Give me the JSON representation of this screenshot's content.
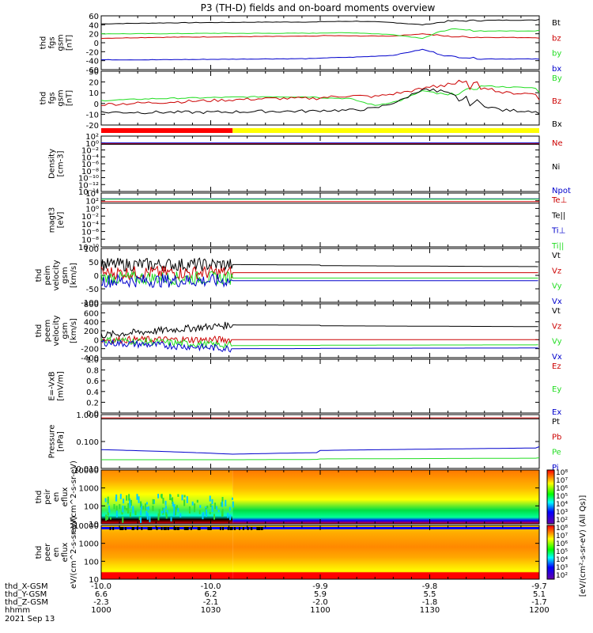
{
  "title": "P3 (TH-D) fields and on-board moments overview",
  "colors": {
    "black": "#000000",
    "red": "#cc0000",
    "green": "#22dd22",
    "blue": "#0000cc",
    "yellow": "#ffff00",
    "brightred": "#ff0000"
  },
  "chart_data": [
    {
      "type": "line",
      "ylabel": "thd fgs gsm [nT]",
      "ylim": [
        -60,
        60
      ],
      "yticks": [
        60,
        40,
        20,
        0,
        -20,
        -40,
        -60
      ],
      "series": [
        {
          "name": "Bt",
          "color": "black",
          "x": [
            1000,
            1015,
            1030,
            1045,
            1100,
            1110,
            1120,
            1128,
            1135,
            1145,
            1200
          ],
          "y": [
            42,
            44,
            45,
            46,
            47,
            48,
            45,
            40,
            48,
            50,
            52
          ]
        },
        {
          "name": "bz",
          "color": "red",
          "x": [
            1000,
            1015,
            1030,
            1045,
            1100,
            1110,
            1120,
            1128,
            1135,
            1145,
            1200
          ],
          "y": [
            10,
            12,
            13,
            14,
            16,
            15,
            15,
            20,
            14,
            12,
            10
          ]
        },
        {
          "name": "by",
          "color": "green",
          "x": [
            1000,
            1015,
            1030,
            1045,
            1100,
            1110,
            1120,
            1128,
            1135,
            1145,
            1200
          ],
          "y": [
            20,
            20,
            21,
            21,
            22,
            22,
            18,
            10,
            30,
            26,
            28
          ]
        },
        {
          "name": "bx",
          "color": "blue",
          "x": [
            1000,
            1015,
            1030,
            1045,
            1100,
            1110,
            1120,
            1128,
            1135,
            1145,
            1200
          ],
          "y": [
            -38,
            -38,
            -37,
            -36,
            -34,
            -32,
            -28,
            -15,
            -30,
            -36,
            -37
          ]
        }
      ]
    },
    {
      "type": "line",
      "ylabel": "thd fgs gsm [nT]",
      "ylim": [
        -25,
        30
      ],
      "yticks": [
        30,
        20,
        10,
        0,
        -10,
        -20
      ],
      "series": [
        {
          "name": "By",
          "color": "green",
          "x": [
            1000,
            1015,
            1030,
            1045,
            1100,
            1108,
            1115,
            1122,
            1128,
            1135,
            1145,
            1150,
            1200
          ],
          "y": [
            0,
            2,
            3,
            4,
            3,
            2,
            -5,
            0,
            10,
            5,
            15,
            14,
            8
          ]
        },
        {
          "name": "Bz",
          "color": "red",
          "x": [
            1000,
            1015,
            1030,
            1045,
            1100,
            1108,
            1115,
            1122,
            1128,
            1135,
            1145,
            1150,
            1200
          ],
          "y": [
            -4,
            -2,
            0,
            2,
            3,
            5,
            4,
            8,
            12,
            18,
            14,
            8,
            2
          ]
        },
        {
          "name": "Bx",
          "color": "black",
          "x": [
            1000,
            1015,
            1030,
            1045,
            1100,
            1108,
            1115,
            1122,
            1128,
            1135,
            1145,
            1150,
            1200
          ],
          "y": [
            -12,
            -12,
            -12,
            -11,
            -10,
            -10,
            -8,
            0,
            12,
            5,
            -5,
            -10,
            -14
          ]
        }
      ]
    },
    {
      "type": "line",
      "ylabel": "Density [cm-3]",
      "scale": "log",
      "ylim": [
        1e-15,
        100
      ],
      "yticks": [
        "10²",
        "10⁰",
        "10⁻²",
        "10⁻⁴",
        "10⁻⁶",
        "10⁻⁸",
        "10⁻¹⁰",
        "10⁻¹²",
        "10⁻¹⁴"
      ],
      "series": [
        {
          "name": "Ne",
          "color": "red",
          "x": [
            1000,
            1200
          ],
          "y": [
            0.5,
            0.5
          ]
        },
        {
          "name": "Ni",
          "color": "black",
          "x": [
            1000,
            1200
          ],
          "y": [
            0.3,
            0.3
          ]
        },
        {
          "name": "Npot",
          "color": "blue",
          "x": [
            1000,
            1200
          ],
          "y": [
            0.8,
            0.8
          ]
        }
      ]
    },
    {
      "type": "line",
      "ylabel": "magt3 [eV]",
      "scale": "log",
      "ylim": [
        1e-11,
        100000
      ],
      "yticks": [
        "10⁴",
        "10²",
        "10⁰",
        "10⁻²",
        "10⁻⁴",
        "10⁻⁶",
        "10⁻⁸",
        "10⁻¹⁰"
      ],
      "series": [
        {
          "name": "Te⊥",
          "color": "red",
          "x": [
            1000,
            1200
          ],
          "y": [
            300,
            300
          ]
        },
        {
          "name": "Te||",
          "color": "black",
          "x": [
            1000,
            1200
          ],
          "y": [
            100,
            100
          ]
        },
        {
          "name": "Ti⊥",
          "color": "blue",
          "x": [
            1000,
            1200
          ],
          "y": [
            2000,
            2000
          ]
        },
        {
          "name": "Ti||",
          "color": "green",
          "x": [
            1000,
            1200
          ],
          "y": [
            1500,
            1500
          ]
        }
      ]
    },
    {
      "type": "line",
      "ylabel": "thd peim velocity gsm [km/s]",
      "ylim": [
        -100,
        100
      ],
      "yticks": [
        100,
        50,
        0,
        -50,
        -100
      ],
      "series": [
        {
          "name": "Vt",
          "color": "black",
          "x": [
            1000,
            1036,
            1200
          ],
          "y": [
            40,
            40,
            30
          ]
        },
        {
          "name": "Vz",
          "color": "red",
          "x": [
            1000,
            1036,
            1200
          ],
          "y": [
            10,
            10,
            10
          ]
        },
        {
          "name": "Vy",
          "color": "green",
          "x": [
            1000,
            1036,
            1200
          ],
          "y": [
            -10,
            -10,
            -10
          ]
        },
        {
          "name": "Vx",
          "color": "blue",
          "x": [
            1000,
            1036,
            1200
          ],
          "y": [
            -20,
            -20,
            -20
          ]
        }
      ]
    },
    {
      "type": "line",
      "ylabel": "thd peem velocity gsm [km/s]",
      "ylim": [
        -400,
        800
      ],
      "yticks": [
        800,
        600,
        400,
        200,
        0,
        -200,
        -400
      ],
      "series": [
        {
          "name": "Vt",
          "color": "black",
          "x": [
            1000,
            1036,
            1200
          ],
          "y": [
            100,
            330,
            280
          ]
        },
        {
          "name": "Vz",
          "color": "red",
          "x": [
            1000,
            1036,
            1200
          ],
          "y": [
            0,
            0,
            0
          ]
        },
        {
          "name": "Vy",
          "color": "green",
          "x": [
            1000,
            1036,
            1200
          ],
          "y": [
            0,
            -130,
            -110
          ]
        },
        {
          "name": "Vx",
          "color": "blue",
          "x": [
            1000,
            1036,
            1200
          ],
          "y": [
            -60,
            -200,
            -180
          ]
        }
      ]
    },
    {
      "type": "line",
      "ylabel": "E=-VxB [mV/m]",
      "ylim": [
        0,
        1
      ],
      "yticks": [
        "1.0",
        "0.8",
        "0.6",
        "0.4",
        "0.2",
        "0.0"
      ],
      "series": [
        {
          "name": "Ez",
          "color": "red",
          "x": [],
          "y": []
        },
        {
          "name": "Ey",
          "color": "green",
          "x": [],
          "y": []
        },
        {
          "name": "Ex",
          "color": "blue",
          "x": [],
          "y": []
        }
      ]
    },
    {
      "type": "line",
      "ylabel": "Pressure [nPa]",
      "scale": "log",
      "ylim": [
        0.003,
        1.3
      ],
      "yticks": [
        "1.000",
        "0.100",
        "0.010"
      ],
      "series": [
        {
          "name": "Pt",
          "color": "black",
          "x": [
            1000,
            1200
          ],
          "y": [
            0.8,
            0.8
          ]
        },
        {
          "name": "Pb",
          "color": "red",
          "x": [
            1000,
            1200
          ],
          "y": [
            0.9,
            0.9
          ]
        },
        {
          "name": "Pe",
          "color": "green",
          "x": [
            1000,
            1036,
            1200
          ],
          "y": [
            0.008,
            0.008,
            0.01
          ]
        },
        {
          "name": "Pi",
          "color": "blue",
          "x": [
            1000,
            1036,
            1200
          ],
          "y": [
            0.025,
            0.015,
            0.035
          ]
        }
      ]
    },
    {
      "type": "heatmap",
      "ylabel": "thd peir en eflux eV/(cm^2-s-sr-eV)",
      "scale": "log",
      "yticks": [
        "10000",
        "1000",
        "100",
        "10"
      ]
    },
    {
      "type": "heatmap",
      "ylabel": "thd peer en eflux eV/(cm^2-s-sr-eV)",
      "scale": "log",
      "yticks": [
        "10000",
        "1000",
        "100",
        "10"
      ]
    }
  ],
  "colorbar": {
    "ticks1": [
      "10⁸",
      "10⁷",
      "10⁶",
      "10⁵",
      "10⁴",
      "10³",
      "10²"
    ],
    "ticks2": [
      "10⁸",
      "10⁷",
      "10⁶",
      "10⁵",
      "10⁴",
      "10³",
      "10²"
    ],
    "label": "[eV/(cm²-s-sr-eV) (All Qs)]"
  },
  "xaxis": {
    "rows": [
      "thd_X-GSM",
      "thd_Y-GSM",
      "thd_Z-GSM",
      "hhmm",
      "2021 Sep 13"
    ],
    "ticks": [
      {
        "v": [
          "-10.0",
          "6.6",
          "-2.3",
          "1000"
        ]
      },
      {
        "v": [
          "-10.0",
          "6.2",
          "-2.1",
          "1030"
        ]
      },
      {
        "v": [
          "-9.9",
          "5.9",
          "-2.0",
          "1100"
        ]
      },
      {
        "v": [
          "-9.8",
          "5.5",
          "-1.8",
          "1130"
        ]
      },
      {
        "v": [
          "-9.7",
          "5.1",
          "-1.7",
          "1200"
        ]
      }
    ]
  }
}
